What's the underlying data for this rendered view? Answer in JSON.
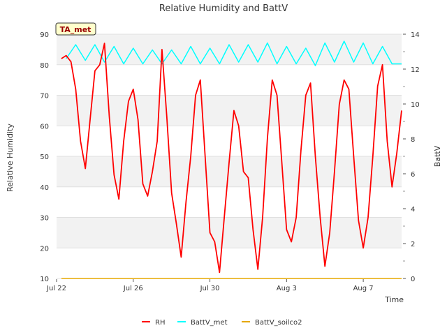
{
  "chart_data": {
    "type": "line",
    "title": "Relative Humidity and BattV",
    "xlabel": "Time",
    "ylabel_left": "Relative Humidity",
    "ylabel_right": "BattV",
    "annotation": "TA_met",
    "x_domain": [
      "2024-07-22",
      "2024-08-09"
    ],
    "x_ticks": [
      {
        "date": "2024-07-22",
        "label": "Jul 22"
      },
      {
        "date": "2024-07-26",
        "label": "Jul 26"
      },
      {
        "date": "2024-07-30",
        "label": "Jul 30"
      },
      {
        "date": "2024-08-03",
        "label": "Aug 3"
      },
      {
        "date": "2024-08-07",
        "label": "Aug 7"
      }
    ],
    "y_left": {
      "range": [
        10,
        90
      ],
      "ticks": [
        10,
        20,
        30,
        40,
        50,
        60,
        70,
        80,
        90
      ]
    },
    "y_right": {
      "range": [
        0,
        14
      ],
      "ticks": [
        0,
        2,
        4,
        6,
        8,
        10,
        12,
        14
      ]
    },
    "background_bands": "alternating grey bands every 10 RH units",
    "legend_position": "bottom",
    "series": [
      {
        "name": "RH",
        "color": "#ff0000",
        "axis": "left",
        "points": [
          [
            "2024-07-22T06:00",
            82
          ],
          [
            "2024-07-22T12:00",
            83
          ],
          [
            "2024-07-22T18:00",
            81
          ],
          [
            "2024-07-23T00:00",
            72
          ],
          [
            "2024-07-23T06:00",
            55
          ],
          [
            "2024-07-23T12:00",
            46
          ],
          [
            "2024-07-23T18:00",
            62
          ],
          [
            "2024-07-24T00:00",
            78
          ],
          [
            "2024-07-24T06:00",
            80
          ],
          [
            "2024-07-24T12:00",
            87
          ],
          [
            "2024-07-24T18:00",
            63
          ],
          [
            "2024-07-25T00:00",
            44
          ],
          [
            "2024-07-25T06:00",
            36
          ],
          [
            "2024-07-25T12:00",
            55
          ],
          [
            "2024-07-25T18:00",
            68
          ],
          [
            "2024-07-26T00:00",
            72
          ],
          [
            "2024-07-26T06:00",
            62
          ],
          [
            "2024-07-26T12:00",
            41
          ],
          [
            "2024-07-26T18:00",
            37
          ],
          [
            "2024-07-27T00:00",
            45
          ],
          [
            "2024-07-27T06:00",
            55
          ],
          [
            "2024-07-27T12:00",
            85
          ],
          [
            "2024-07-27T18:00",
            63
          ],
          [
            "2024-07-28T00:00",
            38
          ],
          [
            "2024-07-28T06:00",
            28
          ],
          [
            "2024-07-28T12:00",
            17
          ],
          [
            "2024-07-28T18:00",
            35
          ],
          [
            "2024-07-29T00:00",
            50
          ],
          [
            "2024-07-29T06:00",
            70
          ],
          [
            "2024-07-29T12:00",
            75
          ],
          [
            "2024-07-29T18:00",
            50
          ],
          [
            "2024-07-30T00:00",
            25
          ],
          [
            "2024-07-30T06:00",
            22
          ],
          [
            "2024-07-30T12:00",
            12
          ],
          [
            "2024-07-30T18:00",
            30
          ],
          [
            "2024-07-31T00:00",
            48
          ],
          [
            "2024-07-31T06:00",
            65
          ],
          [
            "2024-07-31T12:00",
            60
          ],
          [
            "2024-07-31T18:00",
            45
          ],
          [
            "2024-08-01T00:00",
            43
          ],
          [
            "2024-08-01T06:00",
            26
          ],
          [
            "2024-08-01T12:00",
            13
          ],
          [
            "2024-08-01T18:00",
            30
          ],
          [
            "2024-08-02T00:00",
            56
          ],
          [
            "2024-08-02T06:00",
            75
          ],
          [
            "2024-08-02T12:00",
            70
          ],
          [
            "2024-08-02T18:00",
            48
          ],
          [
            "2024-08-03T00:00",
            26
          ],
          [
            "2024-08-03T06:00",
            22
          ],
          [
            "2024-08-03T12:00",
            30
          ],
          [
            "2024-08-03T18:00",
            52
          ],
          [
            "2024-08-04T00:00",
            70
          ],
          [
            "2024-08-04T06:00",
            74
          ],
          [
            "2024-08-04T12:00",
            50
          ],
          [
            "2024-08-04T18:00",
            30
          ],
          [
            "2024-08-05T00:00",
            14
          ],
          [
            "2024-08-05T06:00",
            25
          ],
          [
            "2024-08-05T12:00",
            45
          ],
          [
            "2024-08-05T18:00",
            67
          ],
          [
            "2024-08-06T00:00",
            75
          ],
          [
            "2024-08-06T06:00",
            72
          ],
          [
            "2024-08-06T12:00",
            50
          ],
          [
            "2024-08-06T18:00",
            29
          ],
          [
            "2024-08-07T00:00",
            20
          ],
          [
            "2024-08-07T06:00",
            30
          ],
          [
            "2024-08-07T12:00",
            50
          ],
          [
            "2024-08-07T18:00",
            73
          ],
          [
            "2024-08-08T00:00",
            80
          ],
          [
            "2024-08-08T06:00",
            55
          ],
          [
            "2024-08-08T12:00",
            40
          ],
          [
            "2024-08-08T18:00",
            51
          ],
          [
            "2024-08-09T00:00",
            65
          ]
        ]
      },
      {
        "name": "BattV_met",
        "color": "#00ffff",
        "axis": "right",
        "points": [
          [
            "2024-07-22T12:00",
            12.6
          ],
          [
            "2024-07-23T00:00",
            13.4
          ],
          [
            "2024-07-23T12:00",
            12.5
          ],
          [
            "2024-07-24T00:00",
            13.4
          ],
          [
            "2024-07-24T12:00",
            12.4
          ],
          [
            "2024-07-25T00:00",
            13.3
          ],
          [
            "2024-07-25T12:00",
            12.3
          ],
          [
            "2024-07-26T00:00",
            13.2
          ],
          [
            "2024-07-26T12:00",
            12.3
          ],
          [
            "2024-07-27T00:00",
            13.1
          ],
          [
            "2024-07-27T12:00",
            12.3
          ],
          [
            "2024-07-28T00:00",
            13.1
          ],
          [
            "2024-07-28T12:00",
            12.3
          ],
          [
            "2024-07-29T00:00",
            13.3
          ],
          [
            "2024-07-29T12:00",
            12.3
          ],
          [
            "2024-07-30T00:00",
            13.2
          ],
          [
            "2024-07-30T12:00",
            12.3
          ],
          [
            "2024-07-31T00:00",
            13.4
          ],
          [
            "2024-07-31T12:00",
            12.4
          ],
          [
            "2024-08-01T00:00",
            13.4
          ],
          [
            "2024-08-01T12:00",
            12.4
          ],
          [
            "2024-08-02T00:00",
            13.5
          ],
          [
            "2024-08-02T12:00",
            12.3
          ],
          [
            "2024-08-03T00:00",
            13.3
          ],
          [
            "2024-08-03T12:00",
            12.3
          ],
          [
            "2024-08-04T00:00",
            13.2
          ],
          [
            "2024-08-04T12:00",
            12.2
          ],
          [
            "2024-08-05T00:00",
            13.5
          ],
          [
            "2024-08-05T12:00",
            12.4
          ],
          [
            "2024-08-06T00:00",
            13.6
          ],
          [
            "2024-08-06T12:00",
            12.4
          ],
          [
            "2024-08-07T00:00",
            13.5
          ],
          [
            "2024-08-07T12:00",
            12.3
          ],
          [
            "2024-08-08T00:00",
            13.3
          ],
          [
            "2024-08-08T12:00",
            12.3
          ],
          [
            "2024-08-09T00:00",
            12.3
          ]
        ]
      },
      {
        "name": "BattV_soilco2",
        "color": "#e6a800",
        "axis": "right",
        "points": [
          [
            "2024-07-22T06:00",
            0
          ],
          [
            "2024-08-09T00:00",
            0
          ]
        ]
      }
    ]
  }
}
